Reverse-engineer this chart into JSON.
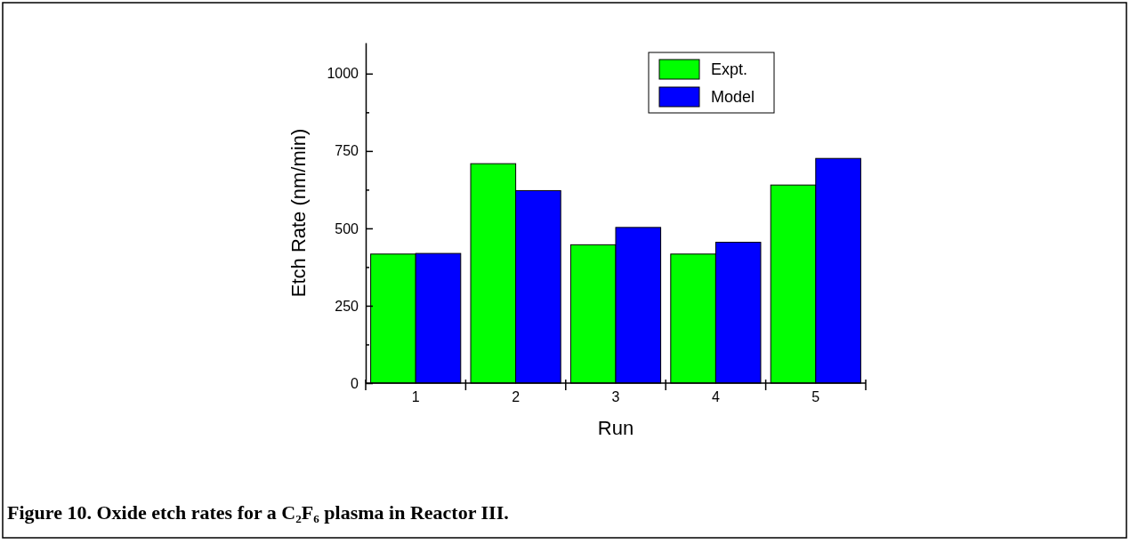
{
  "chart_data": {
    "type": "bar",
    "title": "Figure 10. Oxide etch rates for a C₂F₆ plasma in Reactor III.",
    "xlabel": "Run",
    "ylabel": "Etch Rate (nm/min)",
    "categories": [
      "1",
      "2",
      "3",
      "4",
      "5"
    ],
    "series": [
      {
        "name": "Expt.",
        "color": "#00ff00",
        "values": [
          417,
          709,
          447,
          417,
          640
        ]
      },
      {
        "name": "Model",
        "color": "#0000ff",
        "values": [
          419,
          622,
          503,
          455,
          726
        ]
      }
    ],
    "ylim": [
      0,
      1100
    ],
    "yticks": [
      0,
      {
        "value": 125,
        "label": null
      },
      250,
      {
        "value": 375,
        "label": null
      },
      500,
      {
        "value": 625,
        "label": null
      },
      750,
      {
        "value": 875,
        "label": null
      },
      1000
    ],
    "legend": "top right",
    "grid": false
  }
}
